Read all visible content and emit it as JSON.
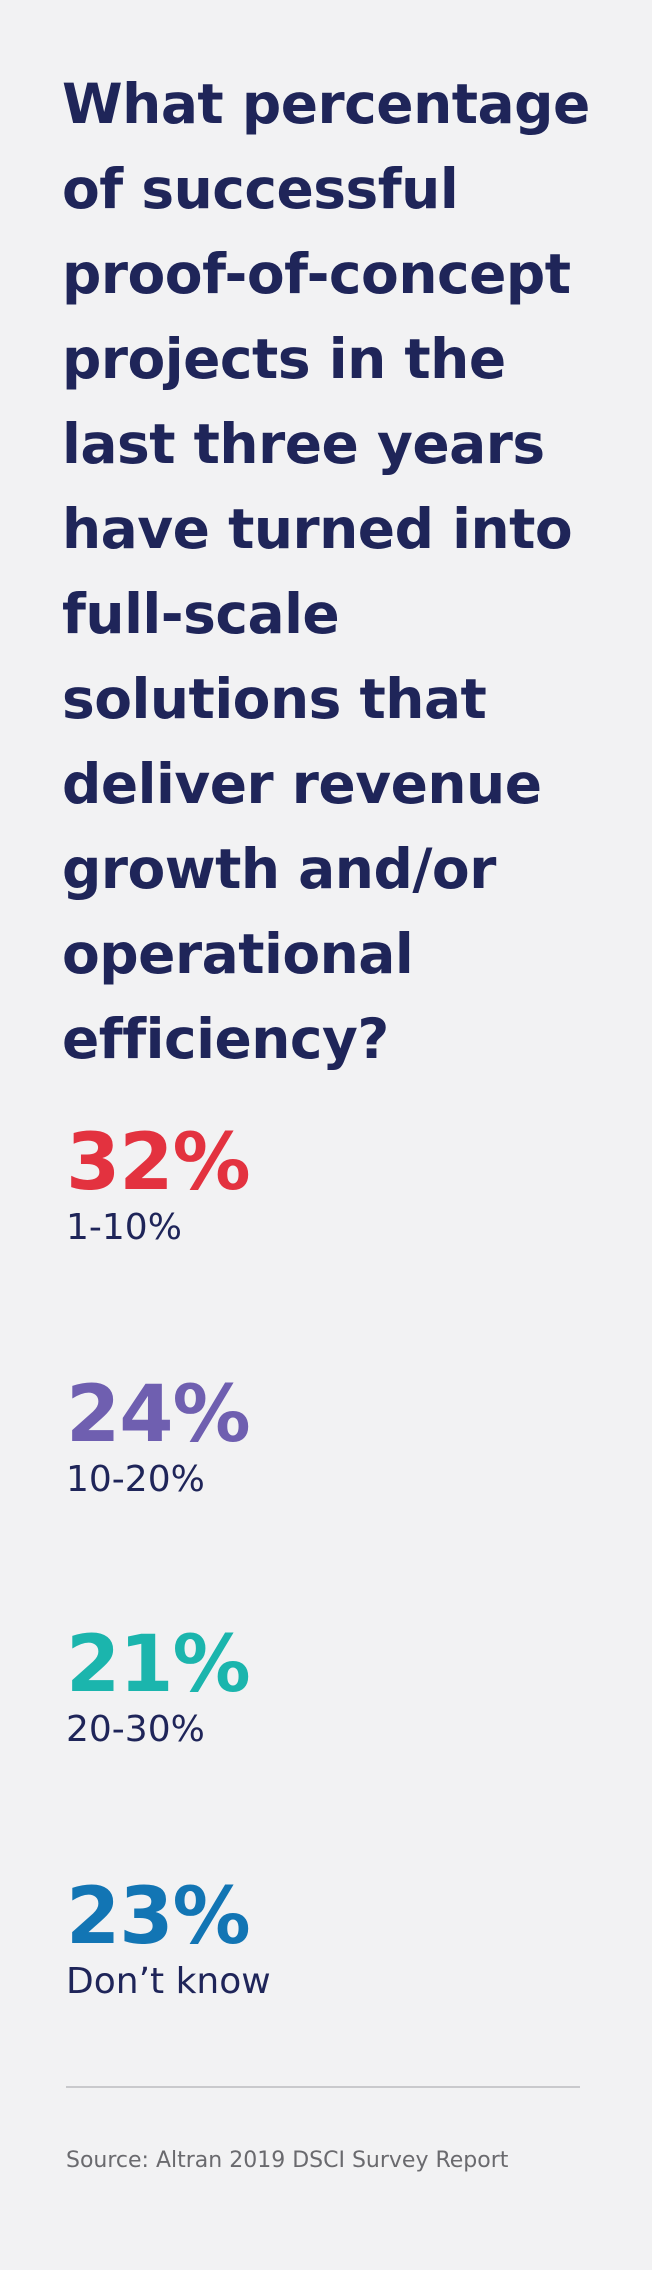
{
  "chart_data": {
    "type": "table",
    "title": "What percentage of successful proof-of-concept projects in the last three years have turned into full-scale solutions that deliver revenue growth and/or operational efficiency?",
    "categories": [
      "1-10%",
      "10-20%",
      "20-30%",
      "Don’t know"
    ],
    "values": [
      32,
      24,
      21,
      23
    ],
    "value_labels": [
      "32%",
      "24%",
      "21%",
      "23%"
    ],
    "colors": [
      "#e3323f",
      "#6f5fb0",
      "#1bb5ad",
      "#1275b4"
    ]
  },
  "source": "Source: Altran 2019 DSCI Survey Report"
}
